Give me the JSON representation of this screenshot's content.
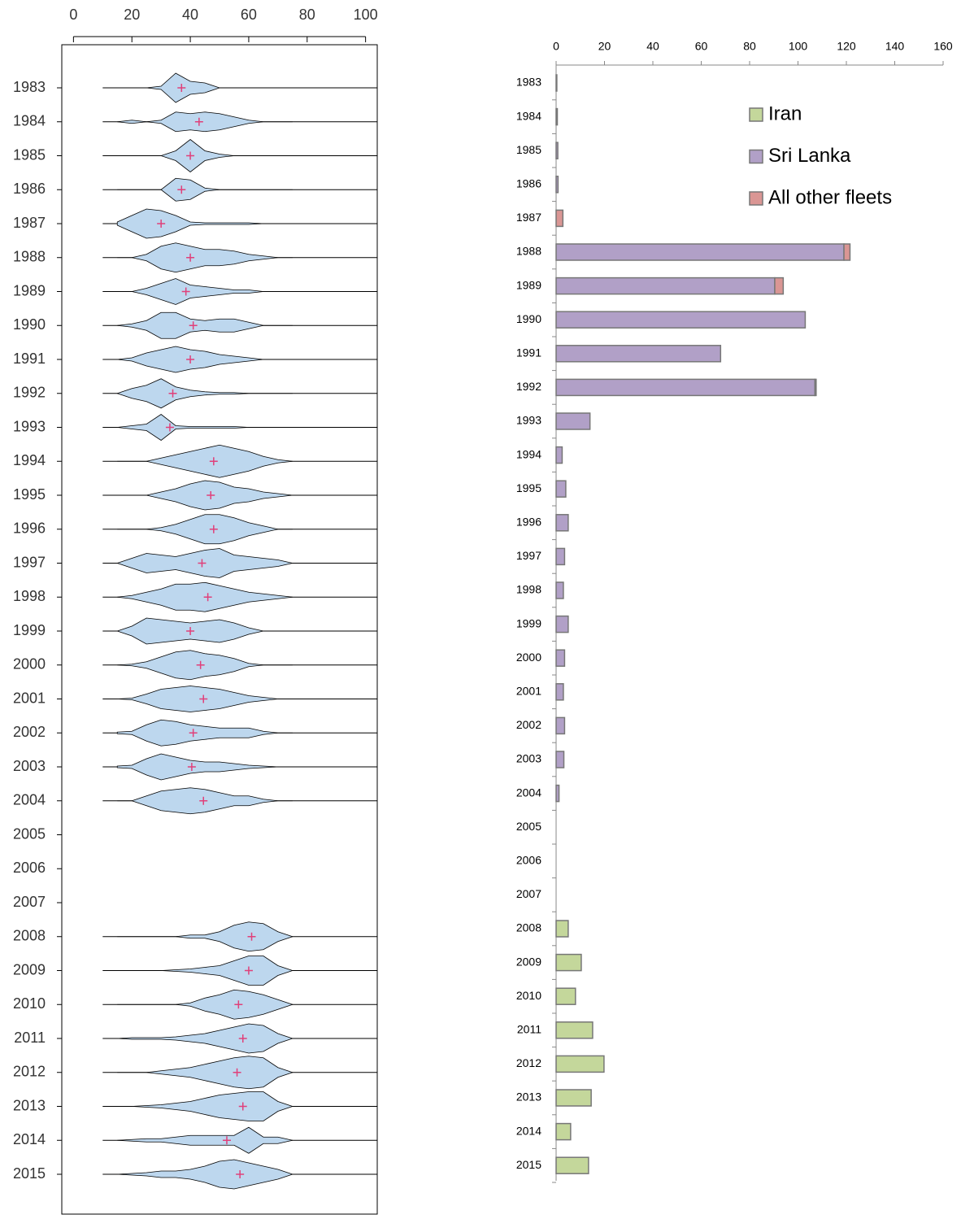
{
  "chart_data": [
    {
      "type": "violin",
      "categories": [
        "1983",
        "1984",
        "1985",
        "1986",
        "1987",
        "1988",
        "1989",
        "1990",
        "1991",
        "1992",
        "1993",
        "1994",
        "1995",
        "1996",
        "1997",
        "1998",
        "1999",
        "2000",
        "2001",
        "2002",
        "2003",
        "2004",
        "2005",
        "2006",
        "2007",
        "2008",
        "2009",
        "2010",
        "2011",
        "2012",
        "2013",
        "2014",
        "2015"
      ],
      "x": [
        15,
        20,
        25,
        30,
        35,
        40,
        45,
        50,
        55,
        60,
        65,
        70,
        75
      ],
      "densities": [
        [
          0,
          0,
          0,
          0.1,
          0.9,
          0.4,
          0.3,
          0,
          0,
          0,
          0,
          0,
          0
        ],
        [
          0,
          0.1,
          0,
          0.1,
          0.6,
          0.5,
          0.6,
          0.5,
          0.3,
          0.1,
          0,
          0,
          0
        ],
        [
          0,
          0,
          0,
          0,
          0.3,
          1,
          0.3,
          0.1,
          0,
          0,
          0,
          0,
          0
        ],
        [
          0,
          0,
          0,
          0,
          0.7,
          0.6,
          0.1,
          0,
          0,
          0,
          0,
          0,
          0
        ],
        [
          0.1,
          0.5,
          0.9,
          0.8,
          0.5,
          0.1,
          0.05,
          0.05,
          0.05,
          0.05,
          0,
          0,
          0
        ],
        [
          0,
          0,
          0.2,
          0.7,
          0.9,
          0.7,
          0.5,
          0.5,
          0.4,
          0.2,
          0.1,
          0,
          0
        ],
        [
          0,
          0,
          0.2,
          0.5,
          0.8,
          0.4,
          0.3,
          0.2,
          0.1,
          0.1,
          0,
          0,
          0
        ],
        [
          0,
          0.1,
          0.3,
          0.8,
          0.8,
          0.4,
          0.3,
          0.4,
          0.4,
          0.2,
          0,
          0,
          0
        ],
        [
          0,
          0.1,
          0.4,
          0.6,
          0.8,
          0.6,
          0.5,
          0.3,
          0.2,
          0.1,
          0,
          0,
          0
        ],
        [
          0,
          0.3,
          0.5,
          0.9,
          0.4,
          0.2,
          0.1,
          0.05,
          0.05,
          0,
          0,
          0,
          0
        ],
        [
          0,
          0.1,
          0.2,
          0.8,
          0.1,
          0.05,
          0.05,
          0.05,
          0.05,
          0,
          0,
          0,
          0
        ],
        [
          0,
          0,
          0,
          0.2,
          0.4,
          0.6,
          0.8,
          1,
          0.8,
          0.6,
          0.3,
          0.1,
          0
        ],
        [
          0,
          0,
          0,
          0.2,
          0.4,
          0.7,
          0.9,
          0.8,
          0.5,
          0.4,
          0.2,
          0.1,
          0
        ],
        [
          0,
          0,
          0,
          0.1,
          0.3,
          0.6,
          0.9,
          0.9,
          0.7,
          0.4,
          0.2,
          0,
          0
        ],
        [
          0,
          0.3,
          0.6,
          0.5,
          0.4,
          0.6,
          0.8,
          0.9,
          0.5,
          0.4,
          0.3,
          0.2,
          0
        ],
        [
          0,
          0.1,
          0.3,
          0.5,
          0.8,
          0.8,
          0.9,
          0.7,
          0.5,
          0.3,
          0.2,
          0.1,
          0
        ],
        [
          0,
          0.3,
          0.8,
          0.7,
          0.6,
          0.5,
          0.6,
          0.7,
          0.5,
          0.2,
          0,
          0,
          0
        ],
        [
          0,
          0.05,
          0.2,
          0.5,
          0.8,
          0.9,
          0.7,
          0.6,
          0.4,
          0.1,
          0,
          0,
          0
        ],
        [
          0,
          0.05,
          0.3,
          0.6,
          0.7,
          0.8,
          0.7,
          0.6,
          0.4,
          0.2,
          0.1,
          0,
          0
        ],
        [
          0.05,
          0.1,
          0.5,
          0.8,
          0.7,
          0.5,
          0.4,
          0.3,
          0.3,
          0.3,
          0.1,
          0,
          0
        ],
        [
          0.05,
          0.1,
          0.5,
          0.8,
          0.6,
          0.4,
          0.3,
          0.3,
          0.2,
          0.1,
          0.05,
          0,
          0
        ],
        [
          0,
          0,
          0.3,
          0.6,
          0.7,
          0.8,
          0.7,
          0.5,
          0.3,
          0.3,
          0.1,
          0,
          0
        ],
        null,
        null,
        null,
        [
          0,
          0,
          0,
          0,
          0,
          0.1,
          0.1,
          0.3,
          0.7,
          0.9,
          0.8,
          0.3,
          0
        ],
        [
          0,
          0,
          0,
          0,
          0.05,
          0.1,
          0.2,
          0.3,
          0.6,
          0.9,
          0.9,
          0.3,
          0
        ],
        [
          0,
          0,
          0,
          0,
          0,
          0.1,
          0.4,
          0.6,
          0.9,
          0.8,
          0.6,
          0.3,
          0
        ],
        [
          0,
          0.05,
          0.05,
          0.05,
          0.1,
          0.2,
          0.3,
          0.5,
          0.7,
          0.9,
          0.8,
          0.3,
          0
        ],
        [
          0,
          0,
          0,
          0.1,
          0.2,
          0.3,
          0.5,
          0.7,
          0.9,
          1,
          0.9,
          0.3,
          0
        ],
        [
          0,
          0,
          0.05,
          0.1,
          0.2,
          0.3,
          0.5,
          0.7,
          0.8,
          0.9,
          0.9,
          0.3,
          0
        ],
        [
          0,
          0.05,
          0.1,
          0.1,
          0.2,
          0.3,
          0.3,
          0.3,
          0.3,
          0.8,
          0.2,
          0.2,
          0
        ],
        [
          0,
          0.05,
          0.1,
          0.2,
          0.2,
          0.3,
          0.5,
          0.8,
          0.9,
          0.7,
          0.5,
          0.3,
          0
        ]
      ],
      "means": [
        37,
        43,
        40,
        37,
        30,
        40,
        38.5,
        41,
        40,
        34,
        33,
        48,
        47,
        48,
        44,
        46,
        40,
        43.5,
        44.5,
        41,
        40.5,
        44.5,
        null,
        null,
        null,
        61,
        60,
        56.5,
        58,
        56,
        58,
        52.5,
        57
      ],
      "color": "#bdd7ee",
      "mean_color": "#e0407a",
      "xlim": [
        -4,
        104
      ],
      "xticks": [
        0,
        20,
        40,
        60,
        80,
        100
      ]
    },
    {
      "type": "stacked_bar_horizontal",
      "categories": [
        "1983",
        "1984",
        "1985",
        "1986",
        "1987",
        "1988",
        "1989",
        "1990",
        "1991",
        "1992",
        "1993",
        "1994",
        "1995",
        "1996",
        "1997",
        "1998",
        "1999",
        "2000",
        "2001",
        "2002",
        "2003",
        "2004",
        "2005",
        "2006",
        "2007",
        "2008",
        "2009",
        "2010",
        "2011",
        "2012",
        "2013",
        "2014",
        "2015"
      ],
      "series": [
        {
          "name": "Iran",
          "color": "#c4d79b",
          "values": [
            0,
            0,
            0,
            0,
            0,
            0,
            0,
            0,
            0,
            0,
            0,
            0,
            0,
            0,
            0,
            0,
            0,
            0,
            0,
            0,
            0,
            0,
            0,
            0,
            0,
            5,
            10.4,
            8,
            15.1,
            19.8,
            14.5,
            6,
            13.4
          ]
        },
        {
          "name": "Sri Lanka",
          "color": "#b1a0c7",
          "values": [
            0.3,
            0.5,
            0.7,
            0.8,
            0,
            119,
            90.4,
            103,
            68,
            107,
            14,
            2.5,
            4,
            5,
            3.5,
            3,
            5,
            3.5,
            3,
            3.5,
            3.2,
            1.2,
            0,
            0,
            0,
            0,
            0,
            0,
            0,
            0,
            0,
            0,
            0
          ]
        },
        {
          "name": "All other fleets",
          "color": "#da9694",
          "values": [
            0,
            0,
            0,
            0,
            2.8,
            2.5,
            3.5,
            0,
            0,
            0.5,
            0,
            0,
            0,
            0,
            0,
            0,
            0,
            0,
            0,
            0,
            0,
            0,
            0,
            0,
            0,
            0,
            0,
            0,
            0,
            0,
            0,
            0,
            0
          ]
        }
      ],
      "xlim": [
        0,
        160
      ],
      "xticks": [
        0,
        20,
        40,
        60,
        80,
        100,
        120,
        140,
        160
      ]
    }
  ]
}
